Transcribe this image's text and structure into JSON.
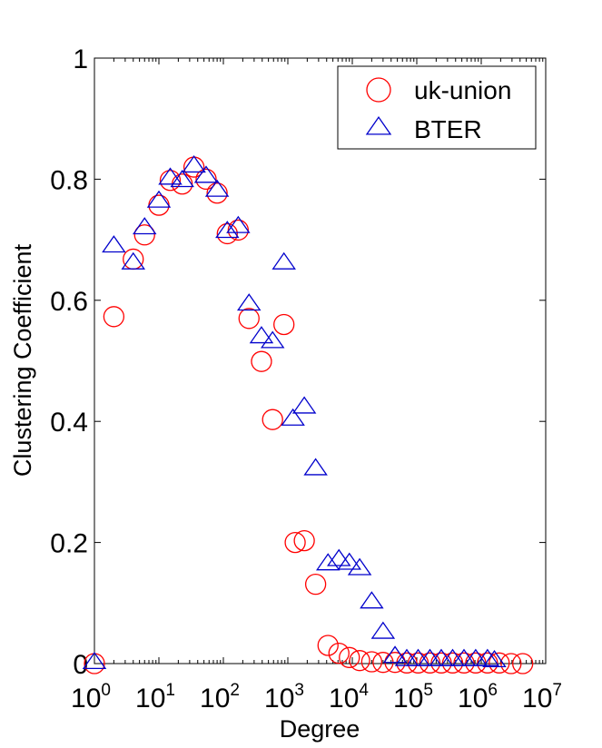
{
  "chart_data": {
    "type": "scatter",
    "x_scale": "log",
    "xlabel": "Degree",
    "ylabel": "Clustering Coefficient",
    "xlim": [
      1,
      10000000
    ],
    "ylim": [
      0,
      1
    ],
    "x_ticks": [
      {
        "base": "10",
        "exp": "0",
        "value": 1
      },
      {
        "base": "10",
        "exp": "1",
        "value": 10
      },
      {
        "base": "10",
        "exp": "2",
        "value": 100
      },
      {
        "base": "10",
        "exp": "3",
        "value": 1000
      },
      {
        "base": "10",
        "exp": "4",
        "value": 10000
      },
      {
        "base": "10",
        "exp": "5",
        "value": 100000
      },
      {
        "base": "10",
        "exp": "6",
        "value": 1000000
      },
      {
        "base": "10",
        "exp": "7",
        "value": 10000000
      }
    ],
    "y_ticks": [
      {
        "label": "0",
        "value": 0
      },
      {
        "label": "0.2",
        "value": 0.2
      },
      {
        "label": "0.4",
        "value": 0.4
      },
      {
        "label": "0.6",
        "value": 0.6
      },
      {
        "label": "0.8",
        "value": 0.8
      },
      {
        "label": "1",
        "value": 1
      }
    ],
    "grid": false,
    "legend_position": "top-right",
    "series": [
      {
        "name": "uk-union",
        "marker": "circle",
        "color": "#ff0000",
        "points": [
          [
            1,
            0.0
          ],
          [
            2,
            0.573
          ],
          [
            4,
            0.668
          ],
          [
            6,
            0.708
          ],
          [
            10,
            0.757
          ],
          [
            15,
            0.798
          ],
          [
            23,
            0.792
          ],
          [
            35,
            0.82
          ],
          [
            54,
            0.8
          ],
          [
            80,
            0.777
          ],
          [
            115,
            0.71
          ],
          [
            170,
            0.716
          ],
          [
            250,
            0.57
          ],
          [
            390,
            0.499
          ],
          [
            580,
            0.403
          ],
          [
            870,
            0.56
          ],
          [
            1300,
            0.2
          ],
          [
            1800,
            0.203
          ],
          [
            2700,
            0.131
          ],
          [
            4200,
            0.03
          ],
          [
            6200,
            0.017
          ],
          [
            9000,
            0.01
          ],
          [
            13000,
            0.005
          ],
          [
            20000,
            0.003
          ],
          [
            30000,
            0.002
          ],
          [
            46000,
            0.002
          ],
          [
            70000,
            0.001
          ],
          [
            105000,
            0.001
          ],
          [
            160000,
            0.001
          ],
          [
            240000,
            0.001
          ],
          [
            360000,
            0.001
          ],
          [
            540000,
            0.001
          ],
          [
            820000,
            0.001
          ],
          [
            1250000,
            0.001
          ],
          [
            1900000,
            0.001
          ],
          [
            2900000,
            0.0
          ],
          [
            4400000,
            0.0
          ]
        ]
      },
      {
        "name": "BTER",
        "marker": "triangle",
        "color": "#0000cc",
        "points": [
          [
            1,
            0.0
          ],
          [
            2,
            0.688
          ],
          [
            4,
            0.66
          ],
          [
            6,
            0.718
          ],
          [
            10,
            0.762
          ],
          [
            15,
            0.8
          ],
          [
            23,
            0.796
          ],
          [
            35,
            0.82
          ],
          [
            54,
            0.803
          ],
          [
            80,
            0.78
          ],
          [
            115,
            0.712
          ],
          [
            170,
            0.72
          ],
          [
            250,
            0.592
          ],
          [
            390,
            0.538
          ],
          [
            580,
            0.53
          ],
          [
            870,
            0.66
          ],
          [
            1200,
            0.402
          ],
          [
            1800,
            0.422
          ],
          [
            2700,
            0.32
          ],
          [
            4200,
            0.163
          ],
          [
            6200,
            0.17
          ],
          [
            9000,
            0.164
          ],
          [
            13000,
            0.155
          ],
          [
            20000,
            0.1
          ],
          [
            30000,
            0.05
          ],
          [
            46000,
            0.01
          ],
          [
            70000,
            0.005
          ],
          [
            105000,
            0.005
          ],
          [
            160000,
            0.005
          ],
          [
            240000,
            0.005
          ],
          [
            360000,
            0.005
          ],
          [
            540000,
            0.005
          ],
          [
            820000,
            0.005
          ],
          [
            1250000,
            0.005
          ],
          [
            1600000,
            0.003
          ]
        ]
      }
    ]
  }
}
